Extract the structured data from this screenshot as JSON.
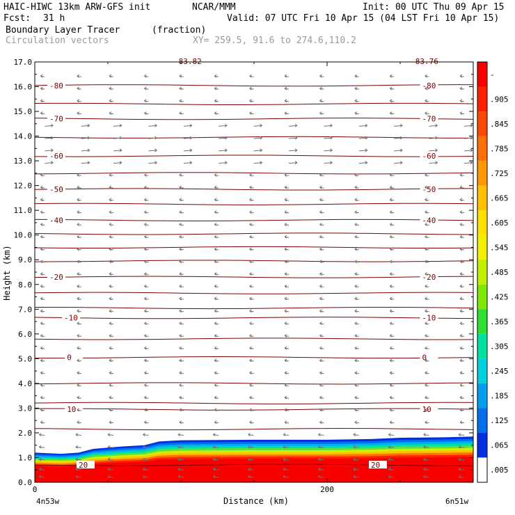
{
  "header": {
    "model": "HAIC-HIWC 13km ARW-GFS init",
    "org": "NCAR/MMM",
    "init": "Init: 00 UTC Thu 09 Apr 15",
    "fcst_label": "Fcst:",
    "fcst_value": "31 h",
    "valid": "Valid: 07 UTC Fri 10 Apr 15 (04 LST Fri 10 Apr 15)",
    "field": "Boundary Layer Tracer",
    "units": "(fraction)",
    "vectors": "Circulation vectors",
    "xy": "XY= 259.5, 91.6 to 274.6,110.2"
  },
  "chart_data": {
    "type": "heatmap",
    "xlabel": "Distance (km)",
    "ylabel": "Height (km)",
    "xlim": [
      0,
      300
    ],
    "ylim": [
      0,
      17
    ],
    "x_ticks": [
      0,
      200
    ],
    "x_tick_labels": [
      "0",
      "200"
    ],
    "x_end_labels": [
      "4n53w",
      "6n51w"
    ],
    "y_ticks": [
      0,
      1,
      2,
      3,
      4,
      5,
      6,
      7,
      8,
      9,
      10,
      11,
      12,
      13,
      14,
      15,
      16,
      17
    ],
    "y_tick_labels": [
      "0.0",
      "1.0",
      "2.0",
      "3.0",
      "4.0",
      "5.0",
      "6.0",
      "7.0",
      "8.0",
      "9.0",
      "10.0",
      "11.0",
      "12.0",
      "13.0",
      "14.0",
      "15.0",
      "16.0",
      "17.0"
    ],
    "grid": false,
    "colorbar": {
      "labels": [
        "-",
        ".905",
        ".845",
        ".785",
        ".725",
        ".665",
        ".605",
        ".545",
        ".485",
        ".425",
        ".365",
        ".305",
        ".245",
        ".185",
        ".125",
        ".065",
        ".005"
      ],
      "colors": [
        "#f80000",
        "#ff2000",
        "#ff4800",
        "#ff7000",
        "#ff9800",
        "#ffc000",
        "#ffe000",
        "#f0f000",
        "#c0f000",
        "#80e800",
        "#30e030",
        "#00e0a0",
        "#00d0e0",
        "#00a0f0",
        "#0070f0",
        "#0030e0",
        "#ffffff"
      ]
    },
    "tracer_top_km": [
      [
        0,
        1.2
      ],
      [
        18,
        1.15
      ],
      [
        30,
        1.2
      ],
      [
        40,
        1.35
      ],
      [
        60,
        1.45
      ],
      [
        75,
        1.5
      ],
      [
        85,
        1.65
      ],
      [
        100,
        1.7
      ],
      [
        150,
        1.72
      ],
      [
        200,
        1.72
      ],
      [
        230,
        1.75
      ],
      [
        250,
        1.8
      ],
      [
        280,
        1.82
      ],
      [
        300,
        1.85
      ]
    ],
    "isotherms": [
      {
        "label": "-80",
        "y_km": 16.05,
        "label_x_km": [
          10,
          265
        ]
      },
      {
        "label": "",
        "y_km": 15.3,
        "label_x_km": []
      },
      {
        "label": "-70",
        "y_km": 14.7,
        "label_x_km": [
          10,
          265
        ]
      },
      {
        "label": "",
        "y_km": 13.95,
        "label_x_km": []
      },
      {
        "label": "-60",
        "y_km": 13.2,
        "label_x_km": [
          10,
          265
        ]
      },
      {
        "label": "",
        "y_km": 12.5,
        "label_x_km": []
      },
      {
        "label": "-50",
        "y_km": 11.85,
        "label_x_km": [
          10,
          265
        ]
      },
      {
        "label": "",
        "y_km": 11.25,
        "label_x_km": []
      },
      {
        "label": "-40",
        "y_km": 10.6,
        "label_x_km": [
          10,
          265
        ]
      },
      {
        "label": "",
        "y_km": 10.05,
        "label_x_km": []
      },
      {
        "label": "",
        "y_km": 9.5,
        "label_x_km": []
      },
      {
        "label": "",
        "y_km": 8.95,
        "label_x_km": []
      },
      {
        "label": "-20",
        "y_km": 8.3,
        "label_x_km": [
          10,
          265
        ]
      },
      {
        "label": "",
        "y_km": 7.65,
        "label_x_km": []
      },
      {
        "label": "",
        "y_km": 7.05,
        "label_x_km": []
      },
      {
        "label": "-10",
        "y_km": 6.65,
        "label_x_km": [
          20,
          265
        ]
      },
      {
        "label": "",
        "y_km": 5.8,
        "label_x_km": []
      },
      {
        "label": "0",
        "y_km": 5.05,
        "label_x_km": [
          22,
          265
        ]
      },
      {
        "label": "",
        "y_km": 4.0,
        "label_x_km": []
      },
      {
        "label": "",
        "y_km": 3.2,
        "label_x_km": []
      },
      {
        "label": "10",
        "y_km": 2.95,
        "label_x_km": [
          22,
          265
        ]
      },
      {
        "label": "",
        "y_km": 2.15,
        "label_x_km": []
      },
      {
        "label": "20",
        "y_km": 0.7,
        "label_x_km": [
          30,
          230
        ]
      }
    ],
    "top_labels": [
      "-83.82",
      "-83.76"
    ],
    "vector_rows_km": [
      16.4,
      15.9,
      15.4,
      14.9,
      14.4,
      13.9,
      13.4,
      12.9,
      12.4,
      11.9,
      11.4,
      10.9,
      10.4,
      9.9,
      9.4,
      8.9,
      8.4,
      7.9,
      7.4,
      6.9,
      6.4,
      5.9,
      5.4,
      4.9,
      4.4,
      3.9,
      3.4,
      2.9,
      2.4,
      1.9,
      1.4,
      0.9,
      0.5,
      0.2
    ],
    "vector_cols_km": [
      3,
      28,
      50,
      74,
      98,
      122,
      146,
      170,
      194,
      218,
      242,
      266,
      290
    ],
    "vector_color": "#707070"
  }
}
